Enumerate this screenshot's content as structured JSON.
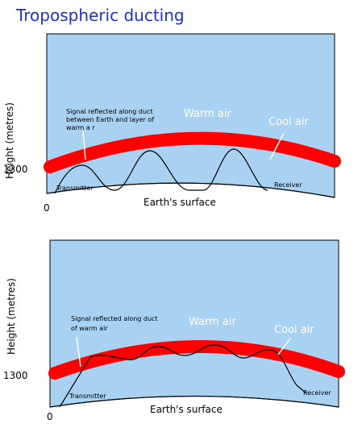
{
  "title": "Tropospheric ducting",
  "panels": [
    {
      "y_axis_label": "Height (metres)",
      "height_label": "1300",
      "zero_label": "0",
      "signal_note": [
        "Signal reflected along duct",
        "between Earth and layer of",
        "warm a r"
      ],
      "warm_label": "Warm air",
      "cool_label": "Cool air",
      "transmitter_label": "Transmitter",
      "receiver_label": "Receiver",
      "surface_label": "Earth's surface"
    },
    {
      "y_axis_label": "Height (metres)",
      "height_label": "1300",
      "zero_label": "0",
      "signal_note": [
        "Signal reflected along duct",
        "of warm air"
      ],
      "warm_label": "Warm air",
      "cool_label": "Cool air",
      "transmitter_label": "Transmitter",
      "receiver_label": "Receiver",
      "surface_label": "Earth's surface"
    }
  ]
}
